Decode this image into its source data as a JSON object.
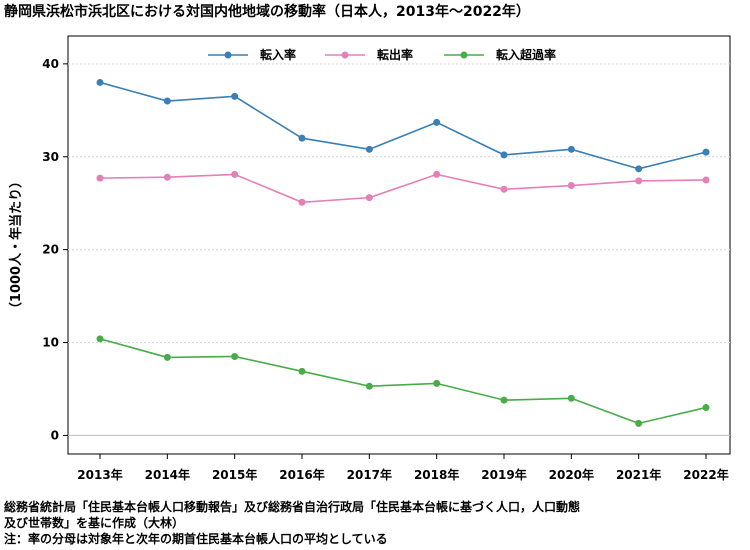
{
  "chart_data": {
    "type": "line",
    "title": "静岡県浜松市浜北区における対国内他地域の移動率（日本人，2013年～2022年）",
    "ylabel": "（1000人・年当たり）",
    "xlabel": "",
    "ylim": [
      -2,
      43
    ],
    "yticks": [
      0,
      10,
      20,
      30,
      40
    ],
    "grid": true,
    "legend_position": "top-center",
    "categories": [
      "2013年",
      "2014年",
      "2015年",
      "2016年",
      "2017年",
      "2018年",
      "2019年",
      "2020年",
      "2021年",
      "2022年"
    ],
    "series": [
      {
        "name": "転入率",
        "color": "#3a7fb5",
        "values": [
          38.0,
          36.0,
          36.5,
          32.0,
          30.8,
          33.7,
          30.2,
          30.8,
          28.7,
          30.5
        ]
      },
      {
        "name": "転出率",
        "color": "#e57fb8",
        "values": [
          27.7,
          27.8,
          28.1,
          25.1,
          25.6,
          28.1,
          26.5,
          26.9,
          27.4,
          27.5
        ]
      },
      {
        "name": "転入超過率",
        "color": "#4aab4a",
        "values": [
          10.4,
          8.4,
          8.5,
          6.9,
          5.3,
          5.6,
          3.8,
          4.0,
          1.3,
          3.0
        ]
      }
    ]
  },
  "notes": [
    "総務省統計局「住民基本台帳人口移動報告」及び総務省自治行政局「住民基本台帳に基づく人口，人口動態",
    "及び世帯数」を基に作成（大林）",
    "注：率の分母は対象年と次年の期首住民基本台帳人口の平均としている"
  ]
}
